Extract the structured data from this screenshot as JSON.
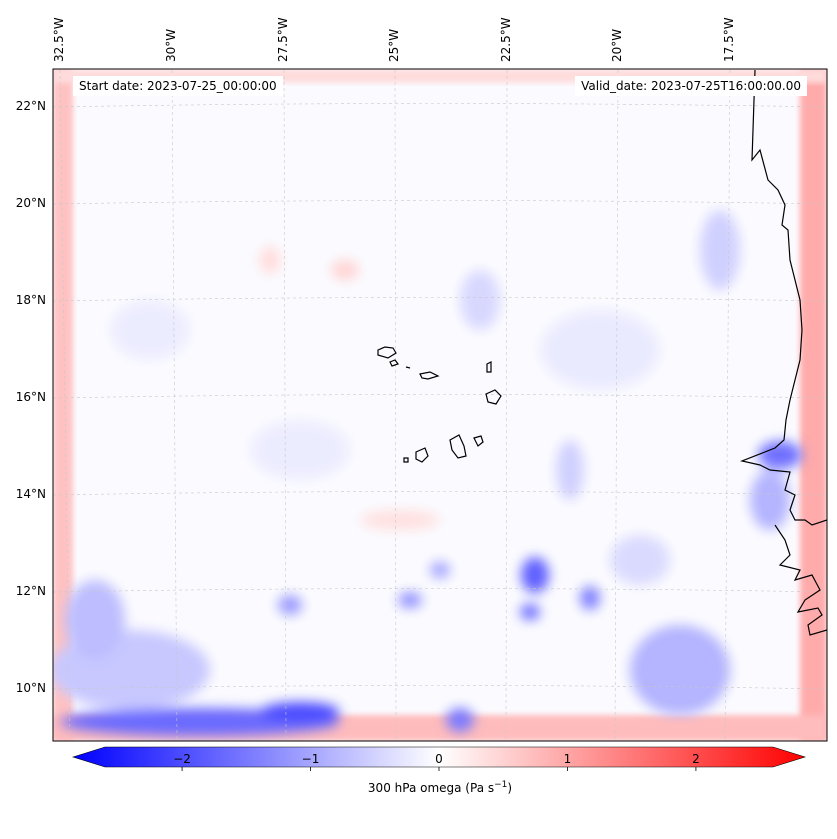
{
  "map": {
    "start_label": "Start date: 2023-07-25_00:00:00",
    "valid_label": "Valid_date: 2023-07-25T16:00:00.00",
    "lon_labels": [
      "32.5°W",
      "30°W",
      "27.5°W",
      "25°W",
      "22.5°W",
      "20°W",
      "17.5°W"
    ],
    "lat_labels": [
      "22°N",
      "20°N",
      "18°N",
      "16°N",
      "14°N",
      "12°N",
      "10°N"
    ],
    "colors": {
      "negative": "#0000ff",
      "zero": "#ffffff",
      "positive": "#ff0000",
      "coast": "#000000",
      "grid": "#bbbbbb"
    }
  },
  "colorbar": {
    "ticks": [
      "−2",
      "−1",
      "0",
      "1",
      "2"
    ],
    "tick_values": [
      -2,
      -1,
      0,
      1,
      2
    ],
    "range": [
      -2.6,
      2.6
    ],
    "label_main": "300 hPa omega (Pa s",
    "label_sup": "−1",
    "label_end": ")"
  }
}
